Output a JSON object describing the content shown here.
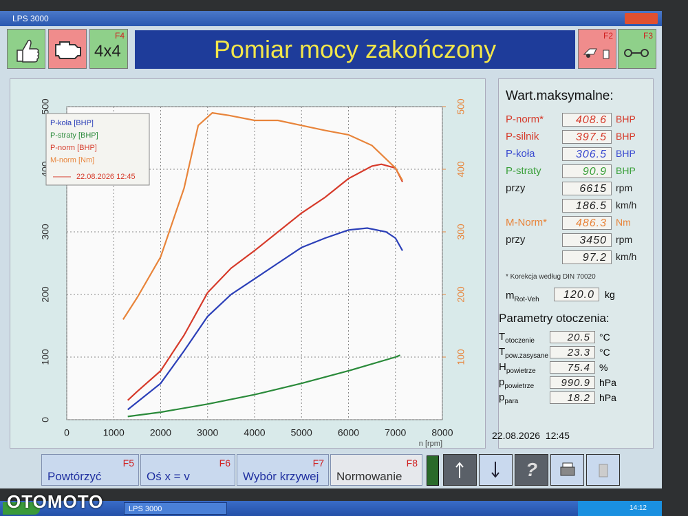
{
  "window_title": "LPS 3000",
  "toolbar": {
    "f4_key": "F4",
    "f4_label": "4x4",
    "title": "Pomiar mocy zakończony",
    "f2_key": "F2",
    "f3_key": "F3"
  },
  "chart_data": {
    "type": "line",
    "x_label": "n [rpm]",
    "xlim": [
      0,
      8000
    ],
    "xticks": [
      0,
      1000,
      2000,
      3000,
      4000,
      5000,
      6000,
      7000,
      8000
    ],
    "ylim": [
      0,
      500
    ],
    "yticks": [
      0,
      100,
      200,
      300,
      400,
      500
    ],
    "y2lim": [
      0,
      500
    ],
    "y2ticks": [
      100,
      200,
      300,
      400,
      500
    ],
    "y2_color": "#e8843a",
    "grid": true,
    "legend_position": "upper left",
    "legend_date": "22.08.2026 12:45",
    "legend_date_color": "#d63a2a",
    "series": [
      {
        "name": "P-koła [BHP]",
        "color": "#2b3fb8",
        "x": [
          1300,
          2000,
          2500,
          3000,
          3500,
          4000,
          4500,
          5000,
          5500,
          6000,
          6400,
          6800,
          7000,
          7150
        ],
        "values": [
          16,
          58,
          110,
          165,
          200,
          225,
          250,
          275,
          290,
          303,
          306,
          300,
          290,
          270
        ]
      },
      {
        "name": "P-straty [BHP]",
        "color": "#2a8a3a",
        "x": [
          1300,
          2000,
          3000,
          4000,
          5000,
          6000,
          7000,
          7100
        ],
        "values": [
          5,
          12,
          25,
          40,
          58,
          78,
          100,
          103
        ]
      },
      {
        "name": "P-norm [BHP]",
        "color": "#d63a2a",
        "x": [
          1300,
          1500,
          2000,
          2500,
          3000,
          3500,
          4000,
          4500,
          5000,
          5500,
          6000,
          6500,
          6700,
          7000,
          7150
        ],
        "values": [
          31,
          45,
          78,
          135,
          203,
          242,
          270,
          300,
          330,
          355,
          385,
          405,
          408,
          402,
          380
        ]
      },
      {
        "name": "M-norm [Nm]",
        "color": "#e8843a",
        "axis": "y2",
        "x": [
          1200,
          1500,
          2000,
          2500,
          2800,
          3100,
          3450,
          4000,
          4500,
          5000,
          5500,
          6000,
          6500,
          7000,
          7150
        ],
        "values": [
          160,
          195,
          260,
          370,
          470,
          490,
          486,
          478,
          478,
          470,
          462,
          455,
          438,
          402,
          382
        ]
      }
    ]
  },
  "max_values": {
    "title": "Wart.maksymalne:",
    "rows": [
      {
        "label": "P-norm*",
        "value": "408.6",
        "unit": "BHP",
        "color": "#d63a2a"
      },
      {
        "label": "P-silnik",
        "value": "397.5",
        "unit": "BHP",
        "color": "#d63a2a"
      },
      {
        "label": "P-koła",
        "value": "306.5",
        "unit": "BHP",
        "color": "#3a4ad0"
      },
      {
        "label": "P-straty",
        "value": "90.9",
        "unit": "BHP",
        "color": "#3aa03a"
      },
      {
        "label": "przy",
        "value": "6615",
        "unit": "rpm",
        "color": "#222222"
      },
      {
        "value": "186.5",
        "unit": "km/h",
        "color": "#222222"
      },
      {
        "label": "M-Norm*",
        "value": "486.3",
        "unit": "Nm",
        "color": "#e8843a"
      },
      {
        "label": "przy",
        "value": "3450",
        "unit": "rpm",
        "color": "#222222"
      },
      {
        "value": "97.2",
        "unit": "km/h",
        "color": "#222222"
      }
    ],
    "note": "* Korekcja według DIN 70020",
    "mass": {
      "main": "m",
      "sub": "Rot-Veh",
      "value": "120.0",
      "unit": "kg"
    }
  },
  "environment": {
    "title": "Parametry otoczenia:",
    "rows": [
      {
        "main": "T",
        "sub": "otoczenie",
        "value": "20.5",
        "unit": "°C"
      },
      {
        "main": "T",
        "sub": "pow.zasysane",
        "value": "23.3",
        "unit": "°C"
      },
      {
        "main": "H",
        "sub": "powietrze",
        "value": "75.4",
        "unit": "%"
      },
      {
        "main": "p",
        "sub": "powietrze",
        "value": "990.9",
        "unit": "hPa"
      },
      {
        "main": "p",
        "sub": "para",
        "value": "18.2",
        "unit": "hPa"
      }
    ],
    "date": "22.08.2026  12:45"
  },
  "function_keys": [
    {
      "key": "F5",
      "label": "Powtórzyć"
    },
    {
      "key": "F6",
      "label": "Oś x = v"
    },
    {
      "key": "F7",
      "label": "Wybór krzywej"
    },
    {
      "key": "F8",
      "label": "Normowanie"
    }
  ],
  "help_button": "?",
  "taskbar": {
    "app": "LPS 3000",
    "clock": "14:12"
  },
  "watermark": "OTOMOTO"
}
